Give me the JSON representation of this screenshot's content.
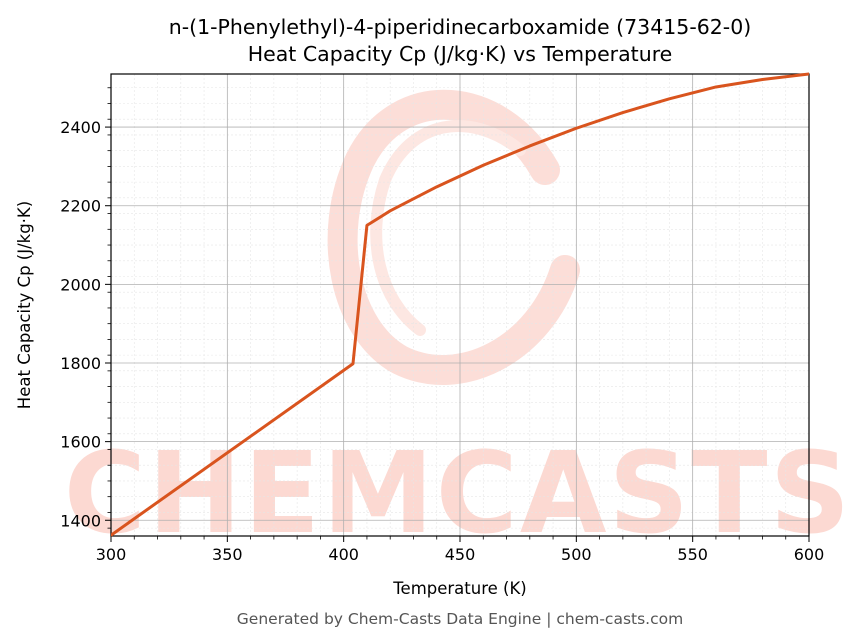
{
  "chart_data": {
    "type": "line",
    "title": "n-(1-Phenylethyl)-4-piperidinecarboxamide (73415-62-0)",
    "subtitle": "Heat Capacity Cp (J/kg·K) vs Temperature",
    "xlabel": "Temperature (K)",
    "ylabel": "Heat Capacity Cp (J/kg·K)",
    "xlim": [
      300,
      600
    ],
    "ylim": [
      1360,
      2535
    ],
    "xticks": [
      300,
      350,
      400,
      450,
      500,
      550,
      600
    ],
    "yticks": [
      1400,
      1600,
      1800,
      2000,
      2200,
      2400
    ],
    "grid": true,
    "line_color": "#d9541e",
    "series": [
      {
        "x": [
          300,
          404,
          410,
          420,
          440,
          460,
          480,
          500,
          520,
          540,
          560,
          580,
          600
        ],
        "y": [
          1362,
          1798,
          2150,
          2187,
          2248,
          2303,
          2352,
          2397,
          2437,
          2472,
          2502,
          2521,
          2535
        ]
      }
    ]
  },
  "watermark": {
    "text": "CHEMCASTS",
    "color": "#fcd9d2"
  },
  "footer": "Generated by Chem-Casts Data Engine | chem-casts.com"
}
